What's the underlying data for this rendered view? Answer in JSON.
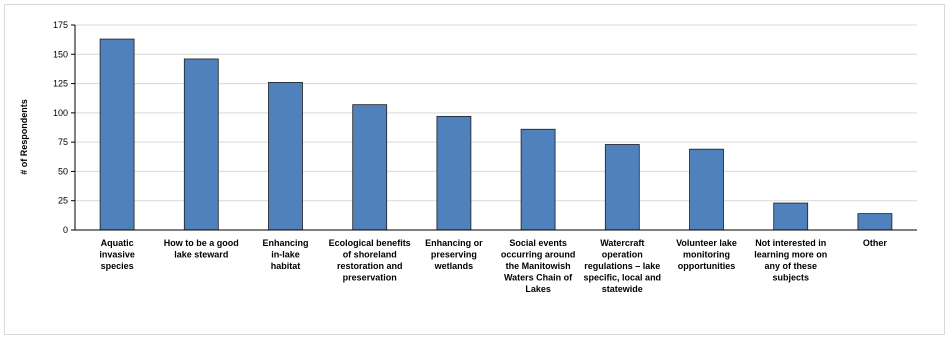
{
  "chart_data": {
    "type": "bar",
    "title": "",
    "xlabel": "",
    "ylabel": "# of Respondents",
    "ylim": [
      0,
      175
    ],
    "yticks": [
      0,
      25,
      50,
      75,
      100,
      125,
      150,
      175
    ],
    "grid": true,
    "legend": "none",
    "bar_color": "#4f81bd",
    "bar_edge_color": "#1f1f1f",
    "categories": [
      [
        "Aquatic",
        "invasive",
        "species"
      ],
      [
        "How to be a good",
        "lake steward"
      ],
      [
        "Enhancing",
        "in-lake",
        "habitat"
      ],
      [
        "Ecological benefits",
        "of shoreland",
        "restoration and",
        "preservation"
      ],
      [
        "Enhancing or",
        "preserving",
        "wetlands"
      ],
      [
        "Social events",
        "occurring around",
        "the Manitowish",
        "Waters Chain of",
        "Lakes"
      ],
      [
        "Watercraft",
        "operation",
        "regulations – lake",
        "specific, local and",
        "statewide"
      ],
      [
        "Volunteer lake",
        "monitoring",
        "opportunities"
      ],
      [
        "Not interested in",
        "learning more on",
        "any of these",
        "subjects"
      ],
      [
        "Other"
      ]
    ],
    "values": [
      163,
      146,
      126,
      107,
      97,
      86,
      73,
      69,
      23,
      14
    ]
  }
}
